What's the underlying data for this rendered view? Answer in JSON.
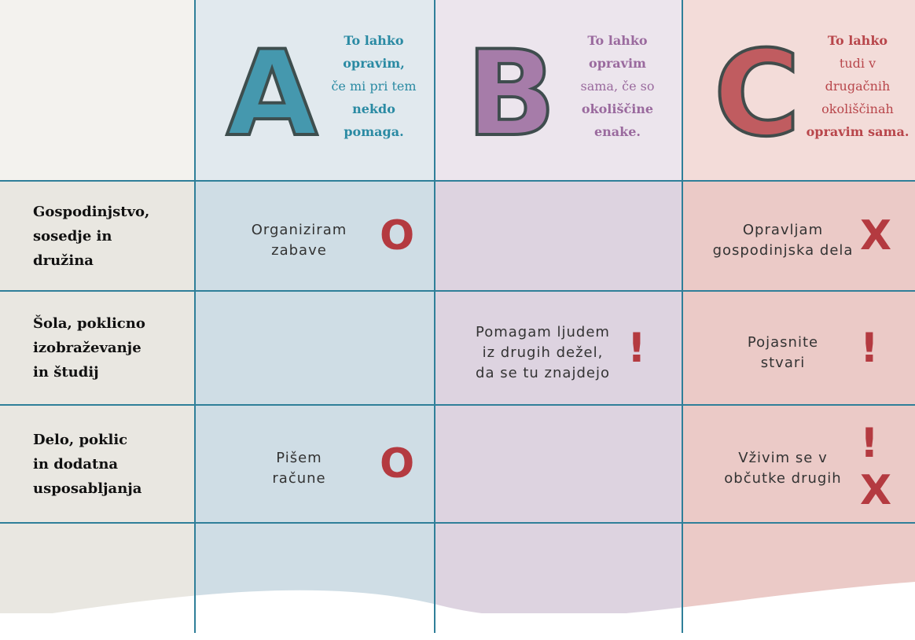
{
  "header": {
    "columns": [
      {
        "letter": "A",
        "color": "#2a8aa3",
        "lines": [
          {
            "text": "To lahko",
            "bold": true
          },
          {
            "text": "opravim,",
            "bold": true
          },
          {
            "text": "če mi pri tem",
            "bold": false
          },
          {
            "text": "nekdo",
            "bold": true
          },
          {
            "text": "pomaga.",
            "bold": true
          }
        ]
      },
      {
        "letter": "B",
        "color": "#9a6a9e",
        "lines": [
          {
            "text": "To lahko",
            "bold": true
          },
          {
            "text": "opravim",
            "bold": true
          },
          {
            "text": "sama, če so",
            "bold": false
          },
          {
            "text": "okoliščine",
            "bold": true
          },
          {
            "text": "enake.",
            "bold": true
          }
        ]
      },
      {
        "letter": "C",
        "color": "#b8464b",
        "lines": [
          {
            "text": "To lahko",
            "bold": true
          },
          {
            "text": "tudi v",
            "bold": false
          },
          {
            "text": "drugačnih",
            "bold": false
          },
          {
            "text": "okoliščinah",
            "bold": false
          },
          {
            "text": "opravim sama.",
            "bold": true
          }
        ]
      }
    ]
  },
  "table": {
    "rows": [
      {
        "label": [
          "Gospodinjstvo,",
          "sosedje in",
          "družina"
        ],
        "cells": [
          {
            "text": [
              "Organiziram",
              "zabave"
            ],
            "marks": [
              "O"
            ]
          },
          null,
          {
            "text": [
              "Opravljam",
              "gospodinjska dela"
            ],
            "marks": [
              "X"
            ]
          }
        ]
      },
      {
        "label": [
          "Šola, poklicno",
          "izobraževanje",
          "in študij"
        ],
        "cells": [
          null,
          {
            "text": [
              "Pomagam ljudem",
              "iz drugih dežel,",
              "da se tu znajdejo"
            ],
            "marks": [
              "!"
            ]
          },
          {
            "text": [
              "Pojasnite",
              "stvari"
            ],
            "marks": [
              "!"
            ]
          }
        ]
      },
      {
        "label": [
          "Delo, poklic",
          "in dodatna",
          "usposabljanja"
        ],
        "cells": [
          {
            "text": [
              "Pišem",
              "račune"
            ],
            "marks": [
              "O"
            ]
          },
          null,
          {
            "text": [
              "Vživim se v",
              "občutke drugih"
            ],
            "marks": [
              "!",
              "X"
            ]
          }
        ]
      }
    ]
  }
}
